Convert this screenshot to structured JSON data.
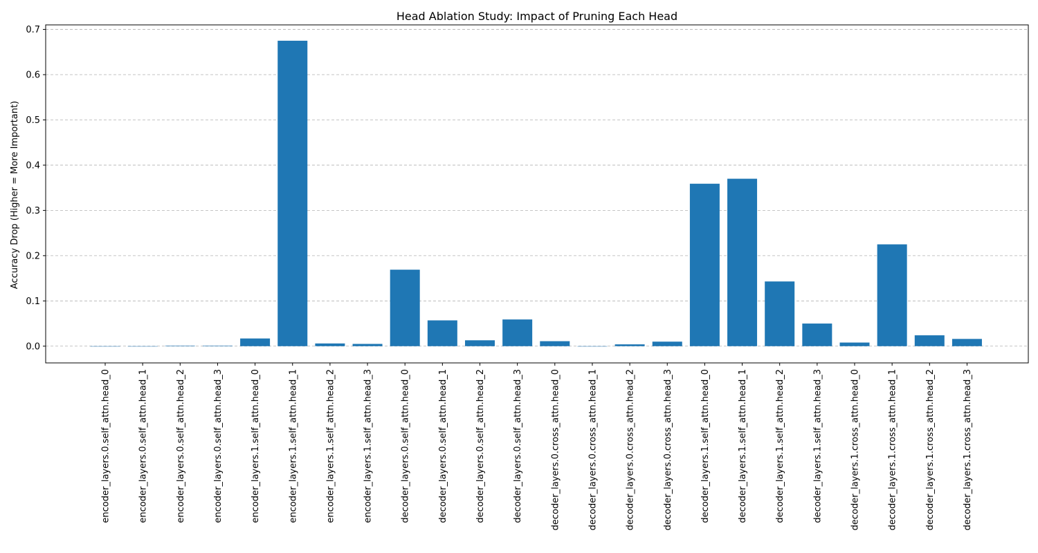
{
  "chart_data": {
    "type": "bar",
    "title": "Head Ablation Study: Impact of Pruning Each Head",
    "xlabel": "",
    "ylabel": "Accuracy Drop (Higher = More Important)",
    "ylim": [
      -0.037,
      0.71
    ],
    "yticks": [
      0.0,
      0.1,
      0.2,
      0.3,
      0.4,
      0.5,
      0.6,
      0.7
    ],
    "ytick_labels": [
      "0.0",
      "0.1",
      "0.2",
      "0.3",
      "0.4",
      "0.5",
      "0.6",
      "0.7"
    ],
    "grid": "y-dashed",
    "bar_color": "#1f77b4",
    "grid_color": "#b0b0b0",
    "categories": [
      "encoder_layers.0.self_attn.head_0",
      "encoder_layers.0.self_attn.head_1",
      "encoder_layers.0.self_attn.head_2",
      "encoder_layers.0.self_attn.head_3",
      "encoder_layers.1.self_attn.head_0",
      "encoder_layers.1.self_attn.head_1",
      "encoder_layers.1.self_attn.head_2",
      "encoder_layers.1.self_attn.head_3",
      "decoder_layers.0.self_attn.head_0",
      "decoder_layers.0.self_attn.head_1",
      "decoder_layers.0.self_attn.head_2",
      "decoder_layers.0.self_attn.head_3",
      "decoder_layers.0.cross_attn.head_0",
      "decoder_layers.0.cross_attn.head_1",
      "decoder_layers.0.cross_attn.head_2",
      "decoder_layers.0.cross_attn.head_3",
      "decoder_layers.1.self_attn.head_0",
      "decoder_layers.1.self_attn.head_1",
      "decoder_layers.1.self_attn.head_2",
      "decoder_layers.1.self_attn.head_3",
      "decoder_layers.1.cross_attn.head_0",
      "decoder_layers.1.cross_attn.head_1",
      "decoder_layers.1.cross_attn.head_2",
      "decoder_layers.1.cross_attn.head_3"
    ],
    "values": [
      0.0,
      0.0,
      0.001,
      0.001,
      0.017,
      0.675,
      0.006,
      0.005,
      0.169,
      0.057,
      0.013,
      0.059,
      0.011,
      0.0,
      0.004,
      0.01,
      0.359,
      0.37,
      0.143,
      0.05,
      0.008,
      0.225,
      0.024,
      0.016
    ]
  }
}
